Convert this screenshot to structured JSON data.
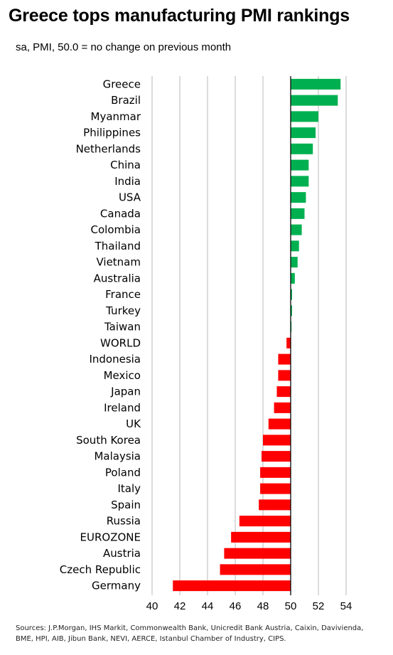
{
  "title": "Greece tops manufacturing PMI rankings",
  "subtitle": "sa, PMI, 50.0 = no change on previous month",
  "source": "Sources: J.P.Morgan, IHS Markit, Commonwealth Bank, Unicredit Bank Austria, Caixin, Davivienda, BME, HPI, AIB, Jibun Bank, NEVI, AERCE, Istanbul Chamber of Industry, CIPS.",
  "colors": {
    "above": "#00b050",
    "below": "#ff0000",
    "grid": "#d0d0d0",
    "axis": "#000000"
  },
  "chart_data": {
    "type": "bar",
    "orientation": "horizontal",
    "baseline": 50,
    "xlim": [
      40,
      54
    ],
    "xticks": [
      "40",
      "42",
      "44",
      "46",
      "48",
      "50",
      "52",
      "54"
    ],
    "grid": true,
    "categories": [
      "Greece",
      "Brazil",
      "Myanmar",
      "Philippines",
      "Netherlands",
      "China",
      "India",
      "USA",
      "Canada",
      "Colombia",
      "Thailand",
      "Vietnam",
      "Australia",
      "France",
      "Turkey",
      "Taiwan",
      "WORLD",
      "Indonesia",
      "Mexico",
      "Japan",
      "Ireland",
      "UK",
      "South Korea",
      "Malaysia",
      "Poland",
      "Italy",
      "Spain",
      "Russia",
      "EUROZONE",
      "Austria",
      "Czech Republic",
      "Germany"
    ],
    "values": [
      53.6,
      53.4,
      52.0,
      51.8,
      51.6,
      51.3,
      51.3,
      51.1,
      51.0,
      50.8,
      50.6,
      50.5,
      50.3,
      50.1,
      50.1,
      50.05,
      49.7,
      49.1,
      49.1,
      49.0,
      48.8,
      48.4,
      48.0,
      47.9,
      47.8,
      47.8,
      47.7,
      46.3,
      45.7,
      45.2,
      44.9,
      41.5
    ]
  }
}
